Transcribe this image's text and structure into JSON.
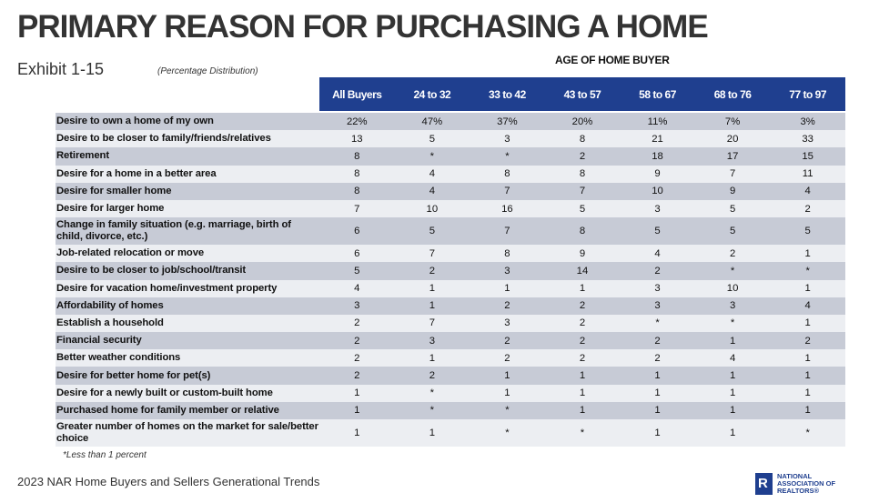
{
  "title": "PRIMARY REASON FOR PURCHASING A HOME",
  "exhibit": "Exhibit 1-15",
  "subtitle": "(Percentage Distribution)",
  "group_header": "AGE OF HOME BUYER",
  "columns": [
    "All Buyers",
    "24 to 32",
    "33 to 42",
    "43 to 57",
    "58 to 67",
    "68 to 76",
    "77 to 97"
  ],
  "rows": [
    {
      "label": "Desire to own a home of my own",
      "values": [
        "22%",
        "47%",
        "37%",
        "20%",
        "11%",
        "7%",
        "3%"
      ]
    },
    {
      "label": "Desire to be closer to family/friends/relatives",
      "values": [
        "13",
        "5",
        "3",
        "8",
        "21",
        "20",
        "33"
      ]
    },
    {
      "label": "Retirement",
      "values": [
        "8",
        "*",
        "*",
        "2",
        "18",
        "17",
        "15"
      ]
    },
    {
      "label": "Desire for a home in a better area",
      "values": [
        "8",
        "4",
        "8",
        "8",
        "9",
        "7",
        "11"
      ]
    },
    {
      "label": "Desire for smaller home",
      "values": [
        "8",
        "4",
        "7",
        "7",
        "10",
        "9",
        "4"
      ]
    },
    {
      "label": "Desire for larger home",
      "values": [
        "7",
        "10",
        "16",
        "5",
        "3",
        "5",
        "2"
      ]
    },
    {
      "label": "Change in family situation (e.g. marriage, birth of child, divorce, etc.)",
      "values": [
        "6",
        "5",
        "7",
        "8",
        "5",
        "5",
        "5"
      ]
    },
    {
      "label": "Job-related relocation or move",
      "values": [
        "6",
        "7",
        "8",
        "9",
        "4",
        "2",
        "1"
      ]
    },
    {
      "label": "Desire to be closer to job/school/transit",
      "values": [
        "5",
        "2",
        "3",
        "14",
        "2",
        "*",
        "*"
      ]
    },
    {
      "label": "Desire for vacation home/investment property",
      "values": [
        "4",
        "1",
        "1",
        "1",
        "3",
        "10",
        "1"
      ]
    },
    {
      "label": "Affordability of homes",
      "values": [
        "3",
        "1",
        "2",
        "2",
        "3",
        "3",
        "4"
      ]
    },
    {
      "label": "Establish a household",
      "values": [
        "2",
        "7",
        "3",
        "2",
        "*",
        "*",
        "1"
      ]
    },
    {
      "label": "Financial security",
      "values": [
        "2",
        "3",
        "2",
        "2",
        "2",
        "1",
        "2"
      ]
    },
    {
      "label": "Better weather conditions",
      "values": [
        "2",
        "1",
        "2",
        "2",
        "2",
        "4",
        "1"
      ]
    },
    {
      "label": "Desire for better home for pet(s)",
      "values": [
        "2",
        "2",
        "1",
        "1",
        "1",
        "1",
        "1"
      ]
    },
    {
      "label": "Desire for a newly built or custom-built home",
      "values": [
        "1",
        "*",
        "1",
        "1",
        "1",
        "1",
        "1"
      ]
    },
    {
      "label": "Purchased home for family member or relative",
      "values": [
        "1",
        "*",
        "*",
        "1",
        "1",
        "1",
        "1"
      ]
    },
    {
      "label": "Greater number of homes on the market for sale/better choice",
      "values": [
        "1",
        "1",
        "*",
        "*",
        "1",
        "1",
        "*"
      ]
    }
  ],
  "note": "*Less than 1 percent",
  "footer": "2023 NAR Home Buyers and Sellers Generational Trends",
  "logo": {
    "line1": "NATIONAL",
    "line2": "ASSOCIATION OF",
    "line3": "REALTORS®"
  },
  "colors": {
    "header_bg": "#1f3f8f",
    "row_dark": "#c7cbd6",
    "row_light": "#eceef2"
  }
}
